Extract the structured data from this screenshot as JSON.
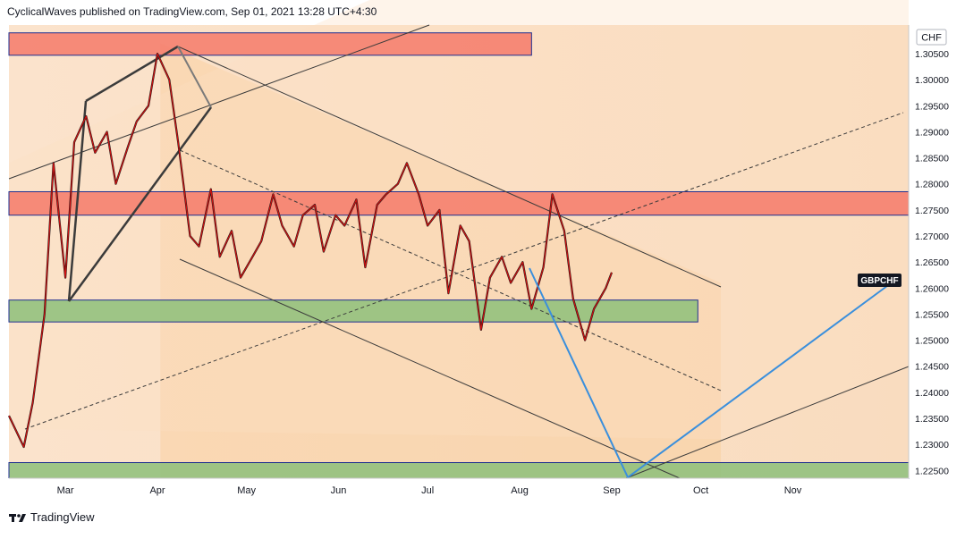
{
  "header": {
    "publisher_line": "CyclicalWaves published on TradingView.com, Sep 01, 2021 13:28 UTC+4:30"
  },
  "footer": {
    "brand": "TradingView",
    "logo_icon": "tradingview-logo-icon"
  },
  "chart_data": {
    "type": "line",
    "symbol_label": "GBPCHF",
    "currency_label": "CHF",
    "x_tick_labels": [
      "Mar",
      "Apr",
      "May",
      "Jun",
      "Jul",
      "Aug",
      "Sep",
      "Oct",
      "Nov"
    ],
    "y_tick_labels": [
      "1.30500",
      "1.30000",
      "1.29500",
      "1.29000",
      "1.28500",
      "1.28000",
      "1.27500",
      "1.27000",
      "1.26500",
      "1.26000",
      "1.25500",
      "1.25000",
      "1.24500",
      "1.24000",
      "1.23500",
      "1.23000",
      "1.22500"
    ],
    "ylim": [
      1.2235,
      1.3105
    ],
    "x_range": [
      "2021-02-10",
      "2021-12-10"
    ],
    "price_series": {
      "color": "#d01010",
      "x": [
        "2021-02-10",
        "2021-02-15",
        "2021-02-18",
        "2021-02-22",
        "2021-02-25",
        "2021-03-01",
        "2021-03-04",
        "2021-03-08",
        "2021-03-11",
        "2021-03-15",
        "2021-03-18",
        "2021-03-22",
        "2021-03-25",
        "2021-03-29",
        "2021-04-01",
        "2021-04-05",
        "2021-04-08",
        "2021-04-12",
        "2021-04-15",
        "2021-04-19",
        "2021-04-22",
        "2021-04-26",
        "2021-04-29",
        "2021-05-03",
        "2021-05-06",
        "2021-05-10",
        "2021-05-13",
        "2021-05-17",
        "2021-05-20",
        "2021-05-24",
        "2021-05-27",
        "2021-05-31",
        "2021-06-03",
        "2021-06-07",
        "2021-06-10",
        "2021-06-14",
        "2021-06-17",
        "2021-06-21",
        "2021-06-24",
        "2021-06-28",
        "2021-07-01",
        "2021-07-05",
        "2021-07-08",
        "2021-07-12",
        "2021-07-15",
        "2021-07-19",
        "2021-07-22",
        "2021-07-26",
        "2021-07-29",
        "2021-08-02",
        "2021-08-05",
        "2021-08-09",
        "2021-08-12",
        "2021-08-16",
        "2021-08-19",
        "2021-08-23",
        "2021-08-26",
        "2021-08-30",
        "2021-09-01"
      ],
      "y": [
        1.2355,
        1.2295,
        1.238,
        1.255,
        1.284,
        1.262,
        1.288,
        1.293,
        1.286,
        1.29,
        1.28,
        1.287,
        1.292,
        1.295,
        1.305,
        1.3,
        1.288,
        1.27,
        1.268,
        1.279,
        1.266,
        1.271,
        1.262,
        1.266,
        1.269,
        1.278,
        1.272,
        1.268,
        1.274,
        1.276,
        1.267,
        1.274,
        1.272,
        1.277,
        1.264,
        1.276,
        1.278,
        1.28,
        1.284,
        1.278,
        1.272,
        1.275,
        1.259,
        1.272,
        1.269,
        1.252,
        1.262,
        1.266,
        1.261,
        1.265,
        1.256,
        1.264,
        1.278,
        1.271,
        1.258,
        1.25,
        1.256,
        1.26,
        1.263
      ]
    },
    "zones": [
      {
        "kind": "resistance",
        "color": "#f47a6a",
        "y_top": 1.309,
        "y_bottom": 1.3047,
        "x_start": "2021-02-10",
        "x_end": "2021-08-05"
      },
      {
        "kind": "resistance",
        "color": "#f47a6a",
        "y_top": 1.2785,
        "y_bottom": 1.274,
        "x_start": "2021-02-10",
        "x_end": "2021-12-30"
      },
      {
        "kind": "support",
        "color": "#8dbf7a",
        "y_top": 1.2577,
        "y_bottom": 1.2535,
        "x_start": "2021-02-10",
        "x_end": "2021-09-30"
      },
      {
        "kind": "support",
        "color": "#8dbf7a",
        "y_top": 1.2265,
        "y_bottom": 1.2235,
        "x_start": "2021-02-10",
        "x_end": "2021-12-30"
      }
    ],
    "grid": false,
    "legend": "none"
  }
}
